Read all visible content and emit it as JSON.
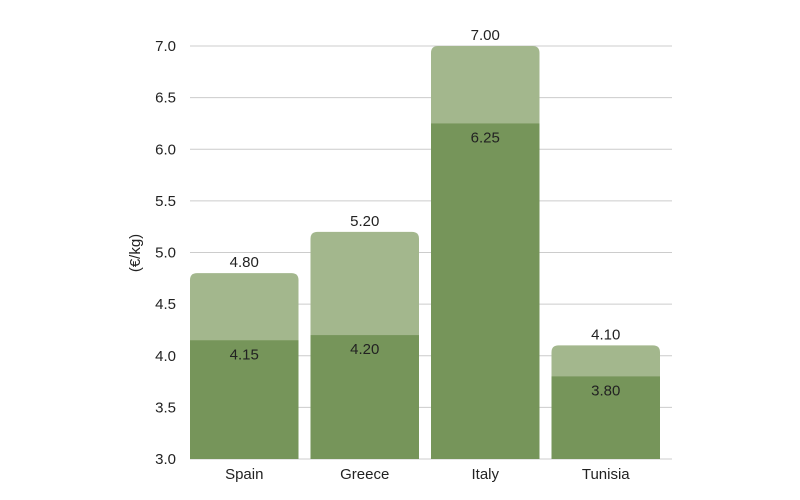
{
  "chart_data": {
    "type": "bar",
    "stacked_overlay": true,
    "categories": [
      "Spain",
      "Greece",
      "Italy",
      "Tunisia"
    ],
    "series": [
      {
        "values": [
          4.15,
          4.2,
          6.25,
          3.8
        ],
        "color": "#76955a"
      },
      {
        "values": [
          4.8,
          5.2,
          7.0,
          4.1
        ],
        "color": "#a3b78d"
      }
    ],
    "inner_labels": [
      "4.15",
      "4.20",
      "6.25",
      "3.80"
    ],
    "outer_labels": [
      "4.80",
      "5.20",
      "7.00",
      "4.10"
    ],
    "ylabel": "(€/kg)",
    "ylim": [
      3.0,
      7.0
    ],
    "yticks": [
      "3.0",
      "3.5",
      "4.0",
      "4.5",
      "5.0",
      "5.5",
      "6.0",
      "6.5",
      "7.0"
    ],
    "grid": true,
    "legend": "none"
  }
}
